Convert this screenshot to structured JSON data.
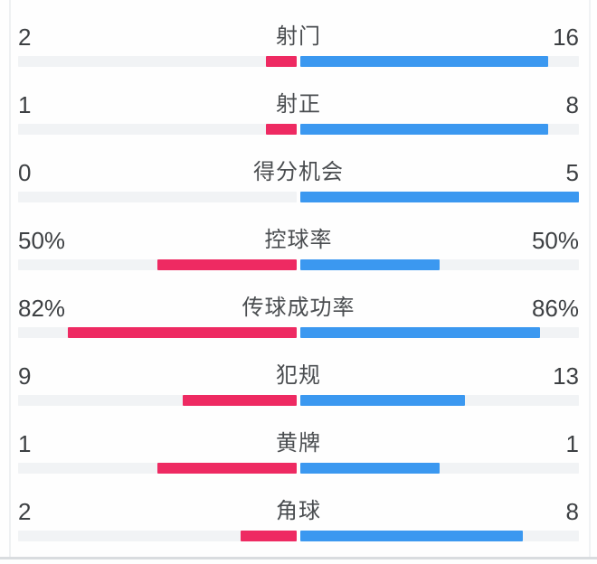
{
  "panel": {
    "description": "football match statistics comparison",
    "home_color": "#ee2a62",
    "away_color": "#3b98f0",
    "track_color": "#f1f3f5"
  },
  "chart_data": {
    "type": "bar",
    "subtype": "bilateral-horizontal-comparison",
    "legend_position": "none",
    "grid": false,
    "categories": [
      "射门",
      "射正",
      "得分机会",
      "控球率",
      "传球成功率",
      "犯规",
      "黄牌",
      "角球"
    ],
    "series": [
      {
        "name": "home",
        "color": "#ee2a62",
        "values": [
          "2",
          "1",
          "0",
          "50%",
          "82%",
          "9",
          "1",
          "2"
        ]
      },
      {
        "name": "away",
        "color": "#3b98f0",
        "values": [
          "16",
          "8",
          "5",
          "50%",
          "86%",
          "13",
          "1",
          "8"
        ]
      }
    ],
    "rows": [
      {
        "label": "射门",
        "left": "2",
        "right": "16"
      },
      {
        "label": "射正",
        "left": "1",
        "right": "8"
      },
      {
        "label": "得分机会",
        "left": "0",
        "right": "5"
      },
      {
        "label": "控球率",
        "left": "50%",
        "right": "50%"
      },
      {
        "label": "传球成功率",
        "left": "82%",
        "right": "86%"
      },
      {
        "label": "犯规",
        "left": "9",
        "right": "13"
      },
      {
        "label": "黄牌",
        "left": "1",
        "right": "1"
      },
      {
        "label": "角球",
        "left": "2",
        "right": "8"
      }
    ],
    "scaling_rule": "percent values scale to value/100 of half-track; count values scale to value/(left+right) of half-track"
  }
}
